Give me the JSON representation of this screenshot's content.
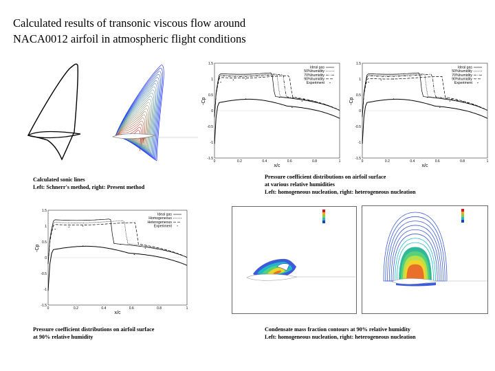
{
  "slide": {
    "title_line1": "Calculated results of transonic viscous flow around",
    "title_line2": "NACA0012 airfoil in atmospheric flight conditions"
  },
  "captions": {
    "sonic_line1": "Calculated sonic lines",
    "sonic_line2": "Left: Schnerr's method, right: Present method",
    "humid_line1": "Pressure coefficient distributions on airfoil surface",
    "humid_line2": "at various relative humidities",
    "humid_line3": "Left: homogeneous nucleation, right: heterogeneous nucleation",
    "p90_line1": "Pressure coefficient distributions on airfoil surface",
    "p90_line2": "at 90% relative humidity",
    "cond_line1": "Condensate mass fraction contours at 90% relative humidity",
    "cond_line2": "Left: homogeneous nucleation, right: heterogeneous nucleation"
  },
  "chart_data": [
    {
      "type": "line",
      "xlabel": "x/c",
      "ylabel": "-Cp",
      "xlim": [
        0,
        1
      ],
      "ylim": [
        -1.5,
        1.5
      ],
      "xticks": [
        "0",
        "0.2",
        "0.4",
        "0.6",
        "0.8",
        "1"
      ],
      "yticks": [
        "1.5",
        "1",
        "0.5",
        "0",
        "-0.5",
        "-1",
        "-1.5"
      ],
      "legend_position": "top-right",
      "series": [
        {
          "name": "Ideal gas",
          "style": "solid",
          "upper_level": 1.17,
          "shock_x": 0.46
        },
        {
          "name": "50%humidity",
          "style": "dotted",
          "upper_level": 1.13,
          "shock_x": 0.5
        },
        {
          "name": "70%humidity",
          "style": "dashdot",
          "upper_level": 1.1,
          "shock_x": 0.55
        },
        {
          "name": "90%humidity",
          "style": "dashed",
          "upper_level": 1.05,
          "shock_x": 0.6
        },
        {
          "name": "Experiment",
          "style": "markers",
          "upper_level": 1.15,
          "shock_x": 0.5
        }
      ]
    },
    {
      "type": "line",
      "xlabel": "x/c",
      "ylabel": "-Cp",
      "xlim": [
        0,
        1
      ],
      "ylim": [
        -1.5,
        1.5
      ],
      "xticks": [
        "0",
        "0.2",
        "0.4",
        "0.6",
        "0.8",
        "1"
      ],
      "yticks": [
        "1.5",
        "1",
        "0.5",
        "0",
        "-0.5",
        "-1",
        "-1.5"
      ],
      "legend_position": "top-right",
      "series": [
        {
          "name": "Ideal gas",
          "style": "solid",
          "upper_level": 1.17,
          "shock_x": 0.46
        },
        {
          "name": "50%humidity",
          "style": "dotted",
          "upper_level": 1.13,
          "shock_x": 0.5
        },
        {
          "name": "70%humidity",
          "style": "dashdot",
          "upper_level": 1.1,
          "shock_x": 0.56
        },
        {
          "name": "90%humidity",
          "style": "dashed",
          "upper_level": 1.02,
          "shock_x": 0.64
        },
        {
          "name": "Experiment",
          "style": "markers",
          "upper_level": 1.15,
          "shock_x": 0.5
        }
      ]
    },
    {
      "type": "line",
      "xlabel": "x/c",
      "ylabel": "-Cp",
      "xlim": [
        0,
        1
      ],
      "ylim": [
        -1.5,
        1.5
      ],
      "xticks": [
        "0",
        "0.2",
        "0.4",
        "0.6",
        "0.8",
        "1"
      ],
      "yticks": [
        "1.5",
        "1",
        "0.5",
        "0",
        "-0.5",
        "-1",
        "-1.5"
      ],
      "legend_position": "top-right",
      "series": [
        {
          "name": "Ideal gas",
          "style": "solid",
          "upper_level": 1.2,
          "shock_x": 0.45
        },
        {
          "name": "Homogeneous",
          "style": "dotted",
          "upper_level": 1.12,
          "shock_x": 0.55
        },
        {
          "name": "Heterogeneous",
          "style": "dashed",
          "upper_level": 1.05,
          "shock_x": 0.63
        },
        {
          "name": "Experiment",
          "style": "markers",
          "upper_level": 1.15,
          "shock_x": 0.5
        }
      ]
    }
  ]
}
